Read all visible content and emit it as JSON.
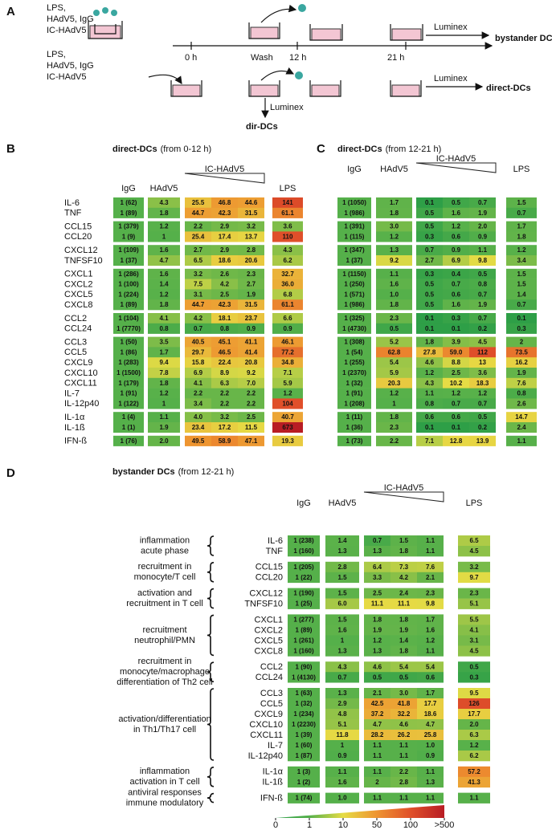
{
  "panel_a": {
    "label": "A",
    "treatment_1": [
      "LPS,",
      "HAdV5, IgG",
      "IC-HAdV5"
    ],
    "treatment_2": [
      "LPS,",
      "HAdV5, IgG",
      "IC-HAdV5"
    ],
    "times": [
      "0 h",
      "Wash",
      "12 h",
      "21 h"
    ],
    "luminex": [
      "Luminex",
      "Luminex",
      "Luminex"
    ],
    "bystander": "bystander DCs",
    "direct": "direct-DCs",
    "dir": "dir-DCs"
  },
  "panel_b": {
    "label": "B",
    "title": "direct-DCs",
    "subtitle": "(from 0-12 h)",
    "headers": [
      "IgG",
      "HAdV5",
      "IC-HAdV5",
      "LPS"
    ],
    "groups": [
      {
        "rows": [
          {
            "name": "IL-6",
            "cells": [
              "1 (62)",
              "4.3",
              "25.5",
              "46.8",
              "44.6",
              "141"
            ]
          },
          {
            "name": "TNF",
            "cells": [
              "1 (89)",
              "1.8",
              "44.7",
              "42.3",
              "31.5",
              "61.1"
            ]
          }
        ]
      },
      {
        "rows": [
          {
            "name": "CCL15",
            "cells": [
              "1 (379)",
              "1.2",
              "2.2",
              "2.9",
              "3.2",
              "3.6"
            ]
          },
          {
            "name": "CCL20",
            "cells": [
              "1 (9)",
              "1",
              "25.4",
              "17.4",
              "13.7",
              "110"
            ]
          }
        ]
      },
      {
        "rows": [
          {
            "name": "CXCL12",
            "cells": [
              "1 (109)",
              "1.6",
              "2.7",
              "2.9",
              "2.8",
              "4.3"
            ]
          },
          {
            "name": "TNFSF10",
            "cells": [
              "1 (37)",
              "4.7",
              "6.5",
              "18.6",
              "20.6",
              "6.2"
            ]
          }
        ]
      },
      {
        "rows": [
          {
            "name": "CXCL1",
            "cells": [
              "1 (286)",
              "1.6",
              "3.2",
              "2.6",
              "2.3",
              "32.7"
            ]
          },
          {
            "name": "CXCL2",
            "cells": [
              "1 (100)",
              "1.4",
              "7.5",
              "4.2",
              "2.7",
              "36.0"
            ]
          },
          {
            "name": "CXCL5",
            "cells": [
              "1 (224)",
              "1.2",
              "3.1",
              "2.5",
              "1.9",
              "6.8"
            ]
          },
          {
            "name": "CXCL8",
            "cells": [
              "1 (89)",
              "1.8",
              "44.7",
              "42.3",
              "31.5",
              "61.1"
            ]
          }
        ]
      },
      {
        "rows": [
          {
            "name": "CCL2",
            "cells": [
              "1 (104)",
              "4.1",
              "4.2",
              "18.1",
              "23.7",
              "6.6"
            ]
          },
          {
            "name": "CCL24",
            "cells": [
              "1 (7770)",
              "0.8",
              "0.7",
              "0.8",
              "0.9",
              "0.9"
            ]
          }
        ]
      },
      {
        "rows": [
          {
            "name": "CCL3",
            "cells": [
              "1 (50)",
              "3.5",
              "40.5",
              "45.1",
              "41.1",
              "46.1"
            ]
          },
          {
            "name": "CCL5",
            "cells": [
              "1 (86)",
              "1.7",
              "29.7",
              "46.5",
              "41.4",
              "77.2"
            ]
          },
          {
            "name": "CXCL9",
            "cells": [
              "1 (283)",
              "9.4",
              "15.8",
              "22.4",
              "20.8",
              "34.8"
            ]
          },
          {
            "name": "CXCL10",
            "cells": [
              "1 (1500)",
              "7.8",
              "6.9",
              "8.9",
              "9.2",
              "7.1"
            ]
          },
          {
            "name": "CXCL11",
            "cells": [
              "1 (179)",
              "1.8",
              "4.1",
              "6.3",
              "7.0",
              "5.9"
            ]
          },
          {
            "name": "IL-7",
            "cells": [
              "1 (91)",
              "1.2",
              "2.2",
              "2.2",
              "2.2",
              "1.2"
            ]
          },
          {
            "name": "IL-12p40",
            "cells": [
              "1 (122)",
              "1",
              "3.4",
              "2.2",
              "2.2",
              "104"
            ]
          }
        ]
      },
      {
        "rows": [
          {
            "name": "IL-1α",
            "cells": [
              "1 (4)",
              "1.1",
              "4.0",
              "3.2",
              "2.5",
              "40.7"
            ]
          },
          {
            "name": "IL-1ß",
            "cells": [
              "1 (1)",
              "1.9",
              "23.4",
              "17.2",
              "11.5",
              "673"
            ]
          }
        ]
      },
      {
        "rows": [
          {
            "name": "IFN-ß",
            "cells": [
              "1 (76)",
              "2.0",
              "49.5",
              "58.9",
              "47.1",
              "19.3"
            ]
          }
        ]
      }
    ]
  },
  "panel_c": {
    "label": "C",
    "title": "direct-DCs",
    "subtitle": "(from 12-21 h)",
    "headers": [
      "IgG",
      "HAdV5",
      "IC-HAdV5",
      "LPS"
    ],
    "groups": [
      {
        "rows": [
          {
            "cells": [
              "1 (1050)",
              "1.7",
              "0.1",
              "0.5",
              "0.7",
              "1.5"
            ]
          },
          {
            "cells": [
              "1 (986)",
              "1.8",
              "0.5",
              "1.6",
              "1.9",
              "0.7"
            ]
          }
        ]
      },
      {
        "rows": [
          {
            "cells": [
              "1 (391)",
              "3.0",
              "0.5",
              "1.2",
              "2.0",
              "1.7"
            ]
          },
          {
            "cells": [
              "1 (115)",
              "1.2",
              "0.3",
              "0.6",
              "0.9",
              "1.8"
            ]
          }
        ]
      },
      {
        "rows": [
          {
            "cells": [
              "1 (347)",
              "1.3",
              "0.7",
              "0.9",
              "1.1",
              "1.2"
            ]
          },
          {
            "cells": [
              "1 (37)",
              "9.2",
              "2.7",
              "6.9",
              "9.8",
              "3.4"
            ]
          }
        ]
      },
      {
        "rows": [
          {
            "cells": [
              "1 (1150)",
              "1.1",
              "0.3",
              "0.4",
              "0.5",
              "1.5"
            ]
          },
          {
            "cells": [
              "1 (250)",
              "1.6",
              "0.5",
              "0.7",
              "0.8",
              "1.5"
            ]
          },
          {
            "cells": [
              "1 (571)",
              "1.0",
              "0.5",
              "0.6",
              "0.7",
              "1.4"
            ]
          },
          {
            "cells": [
              "1 (986)",
              "1.8",
              "0.5",
              "1.6",
              "1.9",
              "0.7"
            ]
          }
        ]
      },
      {
        "rows": [
          {
            "cells": [
              "1 (325)",
              "2.3",
              "0.1",
              "0.3",
              "0.7",
              "0.1"
            ]
          },
          {
            "cells": [
              "1 (4730)",
              "0.5",
              "0.1",
              "0.1",
              "0.2",
              "0.3"
            ]
          }
        ]
      },
      {
        "rows": [
          {
            "cells": [
              "1 (308)",
              "5.2",
              "1.8",
              "3.9",
              "4.5",
              "2"
            ]
          },
          {
            "cells": [
              "1 (54)",
              "62.8",
              "27.8",
              "59.0",
              "112",
              "73.5"
            ]
          },
          {
            "cells": [
              "1 (255)",
              "5.4",
              "4.6",
              "8.8",
              "13",
              "16.2"
            ]
          },
          {
            "cells": [
              "1 (2370)",
              "5.9",
              "1.2",
              "2.5",
              "3.6",
              "1.9"
            ]
          },
          {
            "cells": [
              "1 (32)",
              "20.3",
              "4.3",
              "10.2",
              "18.3",
              "7.6"
            ]
          },
          {
            "cells": [
              "1 (91)",
              "1.2",
              "1.1",
              "1.2",
              "1.2",
              "0.8"
            ]
          },
          {
            "cells": [
              "1 (208)",
              "1",
              "0.8",
              "0.7",
              "0.7",
              "2.6"
            ]
          }
        ]
      },
      {
        "rows": [
          {
            "cells": [
              "1 (11)",
              "1.8",
              "0.6",
              "0.6",
              "0.5",
              "14.7"
            ]
          },
          {
            "cells": [
              "1 (36)",
              "2.3",
              "0.1",
              "0.1",
              "0.2",
              "2.4"
            ]
          }
        ]
      },
      {
        "rows": [
          {
            "cells": [
              "1 (73)",
              "2.2",
              "7.1",
              "12.8",
              "13.9",
              "1.1"
            ]
          }
        ]
      }
    ]
  },
  "panel_d": {
    "label": "D",
    "title": "bystander DCs",
    "subtitle": "(from 12-21 h)",
    "headers": [
      "IgG",
      "HAdV5",
      "IC-HAdV5",
      "LPS"
    ],
    "groups": [
      {
        "function": [
          "inflammation",
          "acute phase"
        ],
        "rows": [
          {
            "name": "IL-6",
            "cells": [
              "1 (238)",
              "1.4",
              "0.7",
              "1.5",
              "1.1",
              "6.5"
            ]
          },
          {
            "name": "TNF",
            "cells": [
              "1 (160)",
              "1.3",
              "1.3",
              "1.8",
              "1.1",
              "4.5"
            ]
          }
        ]
      },
      {
        "function": [
          "recruitment in",
          "monocyte/T cell"
        ],
        "rows": [
          {
            "name": "CCL15",
            "cells": [
              "1 (205)",
              "2.8",
              "6.4",
              "7.3",
              "7.6",
              "3.2"
            ]
          },
          {
            "name": "CCL20",
            "cells": [
              "1 (22)",
              "1.5",
              "3.3",
              "4.2",
              "2.1",
              "9.7"
            ]
          }
        ]
      },
      {
        "function": [
          "activation and",
          "recruitment in T cell"
        ],
        "rows": [
          {
            "name": "CXCL12",
            "cells": [
              "1 (190)",
              "1.5",
              "2.5",
              "2.4",
              "2.3",
              "2.3"
            ]
          },
          {
            "name": "TNFSF10",
            "cells": [
              "1 (25)",
              "6.0",
              "11.1",
              "11.1",
              "9.8",
              "5.1"
            ]
          }
        ]
      },
      {
        "function": [
          "recruitment",
          "neutrophil/PMN"
        ],
        "rows": [
          {
            "name": "CXCL1",
            "cells": [
              "1 (277)",
              "1.5",
              "1.8",
              "1.8",
              "1.7",
              "5.5"
            ]
          },
          {
            "name": "CXCL2",
            "cells": [
              "1 (89)",
              "1.6",
              "1.9",
              "1.9",
              "1.6",
              "4.1"
            ]
          },
          {
            "name": "CXCL5",
            "cells": [
              "1 (261)",
              "1",
              "1.2",
              "1.4",
              "1.2",
              "3.1"
            ]
          },
          {
            "name": "CXCL8",
            "cells": [
              "1 (160)",
              "1.3",
              "1.3",
              "1.8",
              "1.1",
              "4.5"
            ]
          }
        ]
      },
      {
        "function": [
          "recruitment in",
          "monocyte/macrophage",
          "differentiation of Th2 cell"
        ],
        "rows": [
          {
            "name": "CCL2",
            "cells": [
              "1 (90)",
              "4.3",
              "4.6",
              "5.4",
              "5.4",
              "0.5"
            ]
          },
          {
            "name": "CCL24",
            "cells": [
              "1 (4130)",
              "0.7",
              "0.5",
              "0.5",
              "0.6",
              "0.3"
            ]
          }
        ]
      },
      {
        "function": [
          "activation/differentiation",
          "in Th1/Th17 cell"
        ],
        "rows": [
          {
            "name": "CCL3",
            "cells": [
              "1 (63)",
              "1.3",
              "2.1",
              "3.0",
              "1.7",
              "9.5"
            ]
          },
          {
            "name": "CCL5",
            "cells": [
              "1 (32)",
              "2.9",
              "42.5",
              "41.8",
              "17.7",
              "126"
            ]
          },
          {
            "name": "CXCL9",
            "cells": [
              "1 (234)",
              "4.8",
              "37.2",
              "32.2",
              "18.6",
              "17.7"
            ]
          },
          {
            "name": "CXCL10",
            "cells": [
              "1 (2230)",
              "5.1",
              "4.7",
              "4.6",
              "4.7",
              "2.0"
            ]
          },
          {
            "name": "CXCL11",
            "cells": [
              "1 (39)",
              "11.8",
              "28.2",
              "26.2",
              "25.8",
              "6.3"
            ]
          },
          {
            "name": "IL-7",
            "cells": [
              "1 (60)",
              "1",
              "1.1",
              "1.1",
              "1.0",
              "1.2"
            ]
          },
          {
            "name": "IL-12p40",
            "cells": [
              "1 (87)",
              "0.9",
              "1.1",
              "1.1",
              "0.9",
              "6.2"
            ]
          }
        ]
      },
      {
        "function": [
          "inflammation",
          "activation in T cell"
        ],
        "rows": [
          {
            "name": "IL-1α",
            "cells": [
              "1 (3)",
              "1.1",
              "1.1",
              "2.2",
              "1.1",
              "57.2"
            ]
          },
          {
            "name": "IL-1ß",
            "cells": [
              "1 (2)",
              "1.6",
              "2",
              "2.8",
              "1.3",
              "41.3"
            ]
          }
        ]
      },
      {
        "function": [
          "antiviral responses",
          "immune modulatory"
        ],
        "rows": [
          {
            "name": "IFN-ß",
            "cells": [
              "1 (74)",
              "1.0",
              "1.1",
              "1.1",
              "1.1",
              "1.1"
            ]
          }
        ]
      }
    ]
  },
  "colorscale": {
    "ticks": [
      0,
      1,
      10,
      50,
      100,
      {
        "value": 500,
        "label": ">500"
      }
    ],
    "colors": [
      "#2a9d47",
      "#55b04a",
      "#e6dc45",
      "#ee9430",
      "#e0502a",
      "#b81c24"
    ]
  }
}
